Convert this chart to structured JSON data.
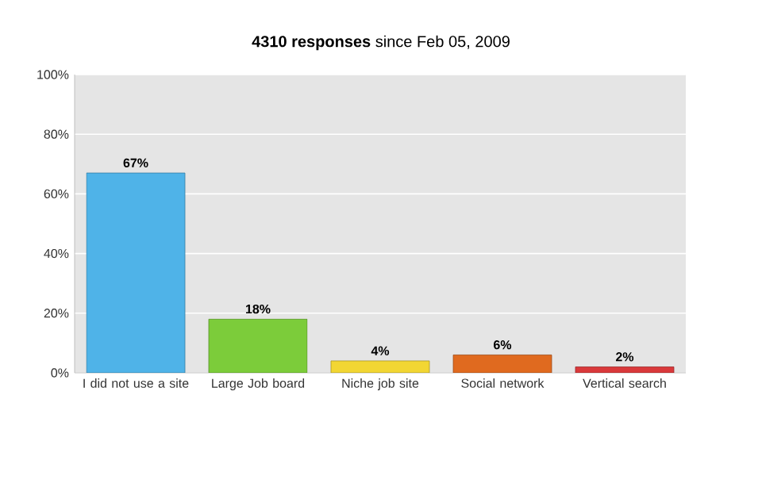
{
  "chart_data": {
    "type": "bar",
    "title": "**4310 responses** since Feb 05, 2009",
    "categories": [
      "I did not use a site",
      "Large Job board",
      "Niche job site",
      "Social network",
      "Vertical search"
    ],
    "values": [
      67,
      18,
      4,
      6,
      2
    ],
    "colors": [
      "#4fb3e8",
      "#7ccc3a",
      "#f2d633",
      "#e06a1f",
      "#d9393b"
    ],
    "value_labels": [
      "67%",
      "18%",
      "4%",
      "6%",
      "2%"
    ],
    "ylim": [
      0,
      100
    ],
    "yticks": [
      {
        "value": 0,
        "label": "0%"
      },
      {
        "value": 20,
        "label": "20%"
      },
      {
        "value": 40,
        "label": "40%"
      },
      {
        "value": 60,
        "label": "60%"
      },
      {
        "value": 80,
        "label": "80%"
      },
      {
        "value": 100,
        "label": "100%"
      }
    ],
    "grid": "y"
  }
}
